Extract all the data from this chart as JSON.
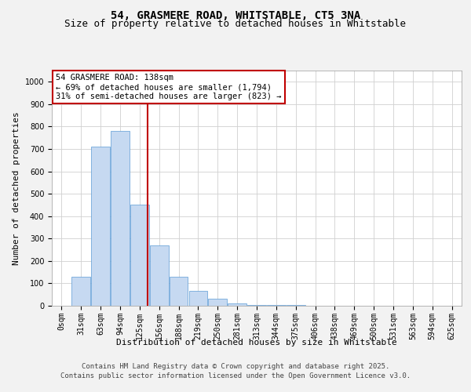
{
  "title": "54, GRASMERE ROAD, WHITSTABLE, CT5 3NA",
  "subtitle": "Size of property relative to detached houses in Whitstable",
  "xlabel": "Distribution of detached houses by size in Whitstable",
  "ylabel": "Number of detached properties",
  "bar_categories": [
    "0sqm",
    "31sqm",
    "63sqm",
    "94sqm",
    "125sqm",
    "156sqm",
    "188sqm",
    "219sqm",
    "250sqm",
    "281sqm",
    "313sqm",
    "344sqm",
    "375sqm",
    "406sqm",
    "438sqm",
    "469sqm",
    "500sqm",
    "531sqm",
    "563sqm",
    "594sqm",
    "625sqm"
  ],
  "bar_values": [
    0,
    130,
    710,
    780,
    450,
    270,
    130,
    65,
    30,
    12,
    5,
    3,
    2,
    1,
    1,
    0,
    0,
    0,
    0,
    0,
    0
  ],
  "bar_color": "#c6d9f1",
  "bar_edge_color": "#5b9bd5",
  "vline_color": "#c00000",
  "annotation_text": "54 GRASMERE ROAD: 138sqm\n← 69% of detached houses are smaller (1,794)\n31% of semi-detached houses are larger (823) →",
  "annotation_box_color": "#c00000",
  "ylim": [
    0,
    1050
  ],
  "yticks": [
    0,
    100,
    200,
    300,
    400,
    500,
    600,
    700,
    800,
    900,
    1000
  ],
  "footer_line1": "Contains HM Land Registry data © Crown copyright and database right 2025.",
  "footer_line2": "Contains public sector information licensed under the Open Government Licence v3.0.",
  "bg_color": "#f2f2f2",
  "plot_bg_color": "#ffffff",
  "grid_color": "#d0d0d0",
  "title_fontsize": 10,
  "subtitle_fontsize": 9,
  "axis_label_fontsize": 8,
  "tick_fontsize": 7,
  "annotation_fontsize": 7.5,
  "footer_fontsize": 6.5
}
